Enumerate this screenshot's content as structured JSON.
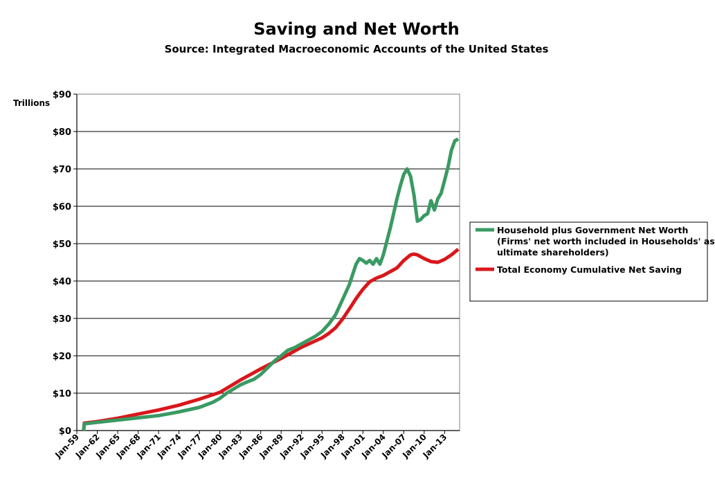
{
  "chart_data": {
    "type": "line",
    "title": "Saving and Net Worth",
    "subtitle": "Source: Integrated Macroeconomic Accounts of the United States",
    "ylabel": "Trillions",
    "ylim": [
      0,
      90
    ],
    "xlim": [
      1959.0,
      2015.2
    ],
    "grid": true,
    "legend_position": "right",
    "y_ticks": [
      {
        "value": 0,
        "label": "$0"
      },
      {
        "value": 10,
        "label": "$10"
      },
      {
        "value": 20,
        "label": "$20"
      },
      {
        "value": 30,
        "label": "$30"
      },
      {
        "value": 40,
        "label": "$40"
      },
      {
        "value": 50,
        "label": "$50"
      },
      {
        "value": 60,
        "label": "$60"
      },
      {
        "value": 70,
        "label": "$70"
      },
      {
        "value": 80,
        "label": "$80"
      },
      {
        "value": 90,
        "label": "$90"
      }
    ],
    "x_ticks": [
      {
        "value": 1959,
        "label": "Jan-59"
      },
      {
        "value": 1962,
        "label": "Jan-62"
      },
      {
        "value": 1965,
        "label": "Jan-65"
      },
      {
        "value": 1968,
        "label": "Jan-68"
      },
      {
        "value": 1971,
        "label": "Jan-71"
      },
      {
        "value": 1974,
        "label": "Jan-74"
      },
      {
        "value": 1977,
        "label": "Jan-77"
      },
      {
        "value": 1980,
        "label": "Jan-80"
      },
      {
        "value": 1983,
        "label": "Jan-83"
      },
      {
        "value": 1986,
        "label": "Jan-86"
      },
      {
        "value": 1989,
        "label": "Jan-89"
      },
      {
        "value": 1992,
        "label": "Jan-92"
      },
      {
        "value": 1995,
        "label": "Jan-95"
      },
      {
        "value": 1998,
        "label": "Jan-98"
      },
      {
        "value": 2001,
        "label": "Jan-01"
      },
      {
        "value": 2004,
        "label": "Jan-04"
      },
      {
        "value": 2007,
        "label": "Jan-07"
      },
      {
        "value": 2010,
        "label": "Jan-10"
      },
      {
        "value": 2013,
        "label": "Jan-13"
      }
    ],
    "series": [
      {
        "name": "Household plus Government Net Worth",
        "legend_lines": [
          "Household plus Government Net Worth",
          "(Firms' net worth included in Households' as",
          "ultimate shareholders)"
        ],
        "color": "#3a9a63",
        "points": [
          [
            1960.0,
            0
          ],
          [
            1960.1,
            1.8
          ],
          [
            1962,
            2.2
          ],
          [
            1965,
            2.8
          ],
          [
            1968,
            3.4
          ],
          [
            1971,
            4.0
          ],
          [
            1974,
            5.0
          ],
          [
            1977,
            6.2
          ],
          [
            1979,
            7.6
          ],
          [
            1980,
            8.6
          ],
          [
            1981,
            10.0
          ],
          [
            1983,
            12.2
          ],
          [
            1984,
            13.0
          ],
          [
            1985,
            13.7
          ],
          [
            1986,
            15.0
          ],
          [
            1987,
            16.8
          ],
          [
            1988,
            18.6
          ],
          [
            1989,
            20.0
          ],
          [
            1990,
            21.5
          ],
          [
            1991,
            22.2
          ],
          [
            1992,
            23.2
          ],
          [
            1993,
            24.2
          ],
          [
            1994,
            25.2
          ],
          [
            1995,
            26.5
          ],
          [
            1996,
            28.5
          ],
          [
            1997,
            31.0
          ],
          [
            1998,
            35.0
          ],
          [
            1999,
            39.0
          ],
          [
            2000,
            44.5
          ],
          [
            2000.5,
            46.0
          ],
          [
            2001,
            45.5
          ],
          [
            2001.5,
            44.8
          ],
          [
            2002,
            45.5
          ],
          [
            2002.5,
            44.5
          ],
          [
            2003,
            46.0
          ],
          [
            2003.5,
            44.5
          ],
          [
            2004,
            47.0
          ],
          [
            2004.5,
            50.5
          ],
          [
            2005,
            54.0
          ],
          [
            2005.5,
            58.0
          ],
          [
            2006,
            62.0
          ],
          [
            2006.5,
            65.5
          ],
          [
            2007,
            68.5
          ],
          [
            2007.5,
            70.0
          ],
          [
            2008,
            68.0
          ],
          [
            2008.5,
            63.0
          ],
          [
            2009,
            56.0
          ],
          [
            2009.5,
            56.5
          ],
          [
            2010,
            57.5
          ],
          [
            2010.5,
            58.0
          ],
          [
            2011,
            61.5
          ],
          [
            2011.5,
            59.0
          ],
          [
            2012,
            62.0
          ],
          [
            2012.5,
            63.5
          ],
          [
            2013,
            67.0
          ],
          [
            2013.5,
            70.5
          ],
          [
            2014,
            75.0
          ],
          [
            2014.5,
            77.5
          ],
          [
            2015.0,
            78.0
          ]
        ]
      },
      {
        "name": "Total Economy Cumulative Net Saving",
        "legend_lines": [
          "Total Economy Cumulative Net Saving"
        ],
        "color": "#d9171c",
        "points": [
          [
            1960.0,
            0
          ],
          [
            1960.1,
            2.0
          ],
          [
            1962,
            2.4
          ],
          [
            1965,
            3.3
          ],
          [
            1968,
            4.4
          ],
          [
            1971,
            5.5
          ],
          [
            1974,
            6.8
          ],
          [
            1977,
            8.4
          ],
          [
            1980,
            10.2
          ],
          [
            1983,
            13.5
          ],
          [
            1986,
            16.5
          ],
          [
            1989,
            19.3
          ],
          [
            1992,
            22.3
          ],
          [
            1995,
            24.8
          ],
          [
            1996,
            26.0
          ],
          [
            1997,
            27.5
          ],
          [
            1998,
            29.8
          ],
          [
            1999,
            32.5
          ],
          [
            2000,
            35.3
          ],
          [
            2001,
            37.8
          ],
          [
            2002,
            39.8
          ],
          [
            2003,
            40.8
          ],
          [
            2004,
            41.5
          ],
          [
            2005,
            42.5
          ],
          [
            2006,
            43.5
          ],
          [
            2007,
            45.5
          ],
          [
            2008,
            47.0
          ],
          [
            2008.5,
            47.2
          ],
          [
            2009,
            47.0
          ],
          [
            2010,
            46.0
          ],
          [
            2011,
            45.2
          ],
          [
            2012,
            45.0
          ],
          [
            2013,
            45.8
          ],
          [
            2014,
            47.0
          ],
          [
            2015.0,
            48.5
          ]
        ]
      }
    ]
  }
}
